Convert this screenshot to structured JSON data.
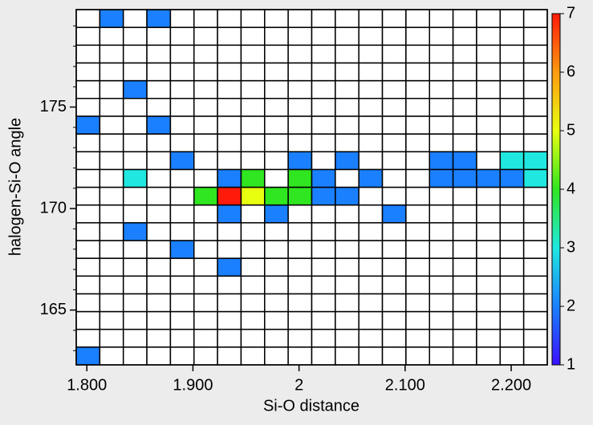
{
  "chart_data": {
    "type": "heatmap",
    "x_label": "Si-O distance",
    "y_label": "halogen-Si-O angle",
    "xbins": [
      1.79,
      1.8122,
      1.8344,
      1.8566,
      1.8788,
      1.901,
      1.9232,
      1.9454,
      1.9676,
      1.9898,
      2.012,
      2.0342,
      2.0564,
      2.0786,
      2.1008,
      2.123,
      2.1452,
      2.1674,
      2.1896,
      2.2118,
      2.234
    ],
    "ybins": [
      162.3,
      163.175,
      164.05,
      164.925,
      165.8,
      166.675,
      167.55,
      168.425,
      169.3,
      170.175,
      171.05,
      171.925,
      172.8,
      173.675,
      174.55,
      175.425,
      176.3,
      177.175,
      178.05,
      178.925,
      179.8
    ],
    "z": [
      [
        2,
        null,
        null,
        null,
        null,
        null,
        null,
        null,
        null,
        null,
        null,
        null,
        null,
        null,
        null,
        null,
        null,
        null,
        null,
        null
      ],
      [
        null,
        null,
        null,
        null,
        null,
        null,
        null,
        null,
        null,
        null,
        null,
        null,
        null,
        null,
        null,
        null,
        null,
        null,
        null,
        null
      ],
      [
        null,
        null,
        null,
        null,
        null,
        null,
        null,
        null,
        null,
        null,
        null,
        null,
        null,
        null,
        null,
        null,
        null,
        null,
        null,
        null
      ],
      [
        null,
        null,
        null,
        null,
        null,
        null,
        null,
        null,
        null,
        null,
        null,
        null,
        null,
        null,
        null,
        null,
        null,
        null,
        null,
        null
      ],
      [
        null,
        null,
        null,
        null,
        null,
        null,
        null,
        null,
        null,
        null,
        null,
        null,
        null,
        null,
        null,
        null,
        null,
        null,
        null,
        null
      ],
      [
        null,
        null,
        null,
        null,
        null,
        null,
        2,
        null,
        null,
        null,
        null,
        null,
        null,
        null,
        null,
        null,
        null,
        null,
        null,
        null
      ],
      [
        null,
        null,
        null,
        null,
        2,
        null,
        null,
        null,
        null,
        null,
        null,
        null,
        null,
        null,
        null,
        null,
        null,
        null,
        null,
        null
      ],
      [
        null,
        null,
        2,
        null,
        null,
        null,
        null,
        null,
        null,
        null,
        null,
        null,
        null,
        null,
        null,
        null,
        null,
        null,
        null,
        null
      ],
      [
        null,
        null,
        null,
        null,
        null,
        null,
        2,
        null,
        2,
        null,
        null,
        null,
        null,
        2,
        null,
        null,
        null,
        null,
        null,
        null
      ],
      [
        null,
        null,
        null,
        null,
        null,
        4,
        7,
        5,
        4,
        4,
        2,
        2,
        null,
        null,
        null,
        null,
        null,
        null,
        null,
        null
      ],
      [
        null,
        null,
        3,
        null,
        null,
        null,
        2,
        4,
        null,
        4,
        2,
        null,
        2,
        null,
        null,
        2,
        2,
        2,
        2,
        3
      ],
      [
        null,
        null,
        null,
        null,
        2,
        null,
        null,
        null,
        null,
        2,
        null,
        2,
        null,
        null,
        null,
        2,
        2,
        null,
        3,
        3
      ],
      [
        null,
        null,
        null,
        null,
        null,
        null,
        null,
        null,
        null,
        null,
        null,
        null,
        null,
        null,
        null,
        null,
        null,
        null,
        null,
        null
      ],
      [
        2,
        null,
        null,
        2,
        null,
        null,
        null,
        null,
        null,
        null,
        null,
        null,
        null,
        null,
        null,
        null,
        null,
        null,
        null,
        null
      ],
      [
        null,
        null,
        null,
        null,
        null,
        null,
        null,
        null,
        null,
        null,
        null,
        null,
        null,
        null,
        null,
        null,
        null,
        null,
        null,
        null
      ],
      [
        null,
        null,
        2,
        null,
        null,
        null,
        null,
        null,
        null,
        null,
        null,
        null,
        null,
        null,
        null,
        null,
        null,
        null,
        null,
        null
      ],
      [
        null,
        null,
        null,
        null,
        null,
        null,
        null,
        null,
        null,
        null,
        null,
        null,
        null,
        null,
        null,
        null,
        null,
        null,
        null,
        null
      ],
      [
        null,
        null,
        null,
        null,
        null,
        null,
        null,
        null,
        null,
        null,
        null,
        null,
        null,
        null,
        null,
        null,
        null,
        null,
        null,
        null
      ],
      [
        null,
        null,
        null,
        null,
        null,
        null,
        null,
        null,
        null,
        null,
        null,
        null,
        null,
        null,
        null,
        null,
        null,
        null,
        null,
        null
      ],
      [
        null,
        2,
        null,
        2,
        null,
        null,
        null,
        null,
        null,
        null,
        null,
        null,
        null,
        null,
        null,
        null,
        null,
        null,
        null,
        null
      ]
    ],
    "xlim": [
      1.79,
      2.234
    ],
    "ylim": [
      162.3,
      179.8
    ],
    "xticks": [
      {
        "value": 1.8,
        "label": "1.800"
      },
      {
        "value": 1.9,
        "label": "1.900"
      },
      2,
      {
        "value": 2.1,
        "label": "2.100"
      },
      {
        "value": 2.2,
        "label": "2.200"
      }
    ],
    "yticks": [
      165,
      170,
      175
    ],
    "yminor": [
      163,
      164,
      166,
      167,
      168,
      169,
      171,
      172,
      173,
      174,
      176,
      177,
      178,
      179
    ],
    "clim": [
      1,
      7
    ],
    "cticks": [
      1,
      2,
      3,
      4,
      5,
      6,
      7
    ],
    "colormap": [
      "#3a10ff",
      "#1a80ff",
      "#20e8e0",
      "#30e620",
      "#e8ff10",
      "#ff9a10",
      "#ff1a0a"
    ]
  }
}
